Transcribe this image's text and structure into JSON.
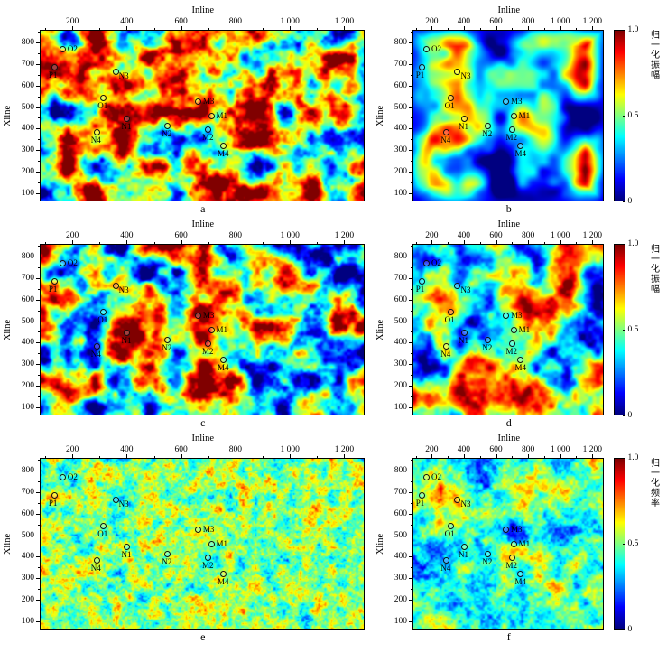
{
  "figure": {
    "background": "#ffffff",
    "text_color": "#000000"
  },
  "chart_data": {
    "type": "heatmap",
    "colormap": "jet",
    "axes": {
      "x_title": "Inline",
      "y_title": "Xline",
      "x_range": [
        80,
        1280
      ],
      "y_range": [
        60,
        860
      ],
      "x_ticks": {
        "values": [
          200,
          400,
          600,
          800,
          1000,
          1200
        ],
        "labels": [
          "200",
          "400",
          "600",
          "800",
          "1 000",
          "1 200"
        ]
      },
      "x_minor_step": 100,
      "y_ticks": {
        "values": [
          800,
          700,
          600,
          500,
          400,
          300,
          200,
          100
        ],
        "labels": [
          "800",
          "700",
          "600",
          "500",
          "400",
          "300",
          "200",
          "100"
        ]
      },
      "y_minor_step": 100
    },
    "colorbar": {
      "range": [
        0,
        1
      ],
      "ticks": {
        "values": [
          1.0,
          0.5,
          0.0
        ],
        "labels": [
          "1.0",
          "0.5",
          "0"
        ]
      }
    },
    "wells": [
      {
        "name": "O2",
        "x": 160,
        "y": 775,
        "label_pos": "right"
      },
      {
        "name": "P1",
        "x": 130,
        "y": 688,
        "label_pos": "below"
      },
      {
        "name": "N3",
        "x": 357,
        "y": 668,
        "label_pos": "right-below"
      },
      {
        "name": "O1",
        "x": 312,
        "y": 545,
        "label_pos": "below"
      },
      {
        "name": "M3",
        "x": 663,
        "y": 528,
        "label_pos": "right"
      },
      {
        "name": "N1",
        "x": 400,
        "y": 448,
        "label_pos": "below"
      },
      {
        "name": "M1",
        "x": 712,
        "y": 458,
        "label_pos": "right"
      },
      {
        "name": "N2",
        "x": 550,
        "y": 415,
        "label_pos": "below"
      },
      {
        "name": "M2",
        "x": 700,
        "y": 398,
        "label_pos": "below"
      },
      {
        "name": "N4",
        "x": 287,
        "y": 382,
        "label_pos": "below"
      },
      {
        "name": "M4",
        "x": 757,
        "y": 320,
        "label_pos": "below"
      }
    ],
    "panels": [
      {
        "id": "a",
        "label": "a",
        "colorbar": false,
        "colorbar_label": "",
        "noise": {
          "seed": 11,
          "cell": 30,
          "octaves": 4,
          "persistence": 0.55,
          "gain": 2.0,
          "bias": 0.03,
          "edge_fade": false
        }
      },
      {
        "id": "b",
        "label": "b",
        "colorbar": true,
        "colorbar_label": "归一化振幅",
        "noise": {
          "seed": 22,
          "cell": 48,
          "octaves": 3,
          "persistence": 0.5,
          "gain": 1.9,
          "bias": -0.16,
          "edge_fade": true
        }
      },
      {
        "id": "c",
        "label": "c",
        "colorbar": false,
        "colorbar_label": "",
        "noise": {
          "seed": 33,
          "cell": 30,
          "octaves": 4,
          "persistence": 0.55,
          "gain": 2.0,
          "bias": 0.03,
          "edge_fade": false
        }
      },
      {
        "id": "d",
        "label": "d",
        "colorbar": true,
        "colorbar_label": "归一化振幅",
        "noise": {
          "seed": 44,
          "cell": 34,
          "octaves": 4,
          "persistence": 0.5,
          "gain": 1.9,
          "bias": -0.02,
          "edge_fade": false
        }
      },
      {
        "id": "e",
        "label": "e",
        "colorbar": false,
        "colorbar_label": "",
        "noise": {
          "seed": 55,
          "cell": 14,
          "octaves": 4,
          "persistence": 0.85,
          "gain": 0.85,
          "bias": 0.02,
          "edge_fade": false
        }
      },
      {
        "id": "f",
        "label": "f",
        "colorbar": true,
        "colorbar_label": "归一化频率",
        "noise": {
          "seed": 66,
          "cell": 40,
          "octaves": 5,
          "persistence": 0.8,
          "gain": 1.2,
          "bias": -0.05,
          "edge_fade": false
        }
      }
    ]
  }
}
